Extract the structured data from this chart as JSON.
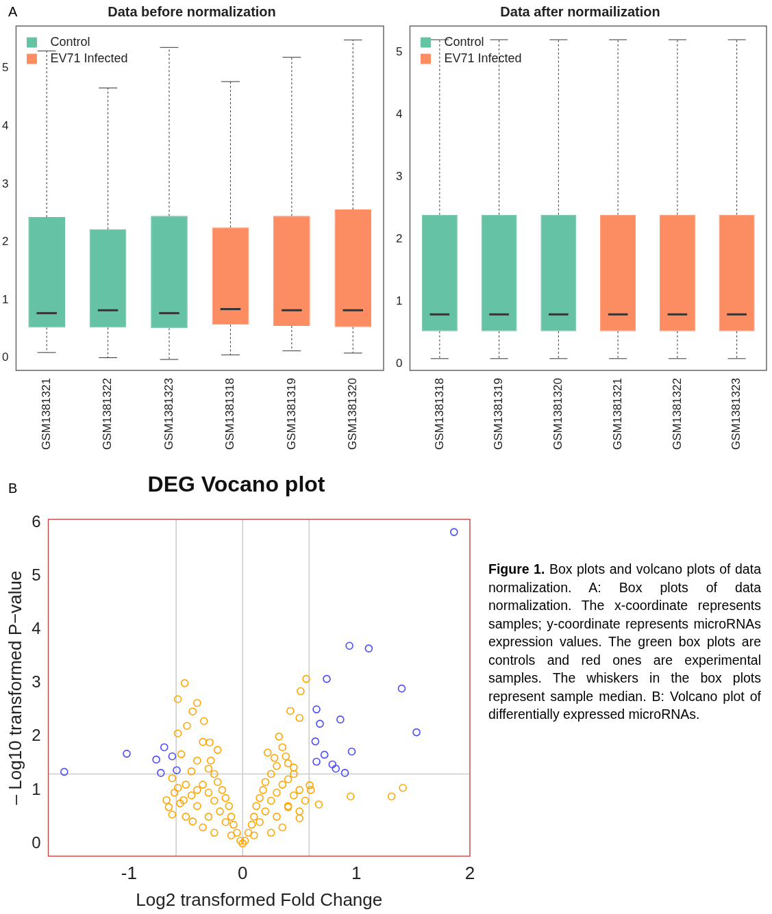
{
  "chart_data": [
    {
      "type": "box",
      "title": "Data before normalization",
      "categories": [
        "GSM1381321",
        "GSM1381322",
        "GSM1381323",
        "GSM1381318",
        "GSM1381319",
        "GSM1381320"
      ],
      "series": [
        {
          "name": "Control",
          "color": "#66c2a5",
          "boxes": [
            {
              "low": 0.09,
              "q1": 0.52,
              "median": 0.77,
              "q3": 2.43,
              "high": 5.3
            },
            {
              "low": 0.0,
              "q1": 0.52,
              "median": 0.82,
              "q3": 2.22,
              "high": 4.66
            },
            {
              "low": -0.03,
              "q1": 0.51,
              "median": 0.77,
              "q3": 2.45,
              "high": 5.36
            },
            null,
            null,
            null
          ]
        },
        {
          "name": "EV71 Infected",
          "color": "#fc8d62",
          "boxes": [
            null,
            null,
            null,
            {
              "low": 0.05,
              "q1": 0.57,
              "median": 0.84,
              "q3": 2.25,
              "high": 4.77
            },
            {
              "low": 0.12,
              "q1": 0.55,
              "median": 0.82,
              "q3": 2.45,
              "high": 5.19
            },
            {
              "low": 0.08,
              "q1": 0.53,
              "median": 0.82,
              "q3": 2.56,
              "high": 5.49
            }
          ]
        }
      ],
      "ylim": [
        -0.22,
        5.73
      ],
      "yticks": [
        0,
        1,
        2,
        3,
        4,
        5
      ],
      "legend": "top left",
      "annotations": [
        "A"
      ]
    },
    {
      "type": "box",
      "title": "Data after normailization",
      "categories": [
        "GSM1381318",
        "GSM1381319",
        "GSM1381320",
        "GSM1381321",
        "GSM1381322",
        "GSM1381323"
      ],
      "series": [
        {
          "name": "Control",
          "color": "#66c2a5",
          "boxes": [
            {
              "low": 0.08,
              "q1": 0.52,
              "median": 0.79,
              "q3": 2.39,
              "high": 5.2
            },
            {
              "low": 0.08,
              "q1": 0.52,
              "median": 0.79,
              "q3": 2.39,
              "high": 5.2
            },
            {
              "low": 0.08,
              "q1": 0.52,
              "median": 0.79,
              "q3": 2.39,
              "high": 5.2
            },
            null,
            null,
            null
          ]
        },
        {
          "name": "EV71 Infected",
          "color": "#fc8d62",
          "boxes": [
            null,
            null,
            null,
            {
              "low": 0.08,
              "q1": 0.52,
              "median": 0.79,
              "q3": 2.39,
              "high": 5.2
            },
            {
              "low": 0.08,
              "q1": 0.52,
              "median": 0.79,
              "q3": 2.39,
              "high": 5.2
            },
            {
              "low": 0.08,
              "q1": 0.52,
              "median": 0.79,
              "q3": 2.39,
              "high": 5.2
            }
          ]
        }
      ],
      "ylim": [
        -0.11,
        5.42
      ],
      "yticks": [
        0,
        1,
        2,
        3,
        4,
        5
      ],
      "legend": "top left"
    },
    {
      "type": "scatter",
      "title": "DEG Vocano plot",
      "xlabel": "Log2 transformed Fold Change",
      "ylabel": "– Log10 transformed P−value",
      "xlim": [
        -1.71,
        2.0
      ],
      "xticks": [
        -1,
        0,
        1,
        2
      ],
      "ylim": [
        -0.24,
        6.07
      ],
      "yticks": [
        0,
        1,
        2,
        3,
        4,
        5,
        6
      ],
      "marker": "circle",
      "ref_lines": [
        {
          "axis": "x",
          "value": -0.585,
          "color": "#cccccc"
        },
        {
          "axis": "x",
          "value": 0,
          "color": "#cccccc"
        },
        {
          "axis": "x",
          "value": 0.585,
          "color": "#cccccc"
        },
        {
          "axis": "y",
          "value": 1.3,
          "color": "#cccccc"
        }
      ],
      "series": [
        {
          "color": "#ffa500",
          "x": [
            -0.51,
            -0.57,
            -0.4,
            -0.44,
            -0.34,
            -0.57,
            -0.49,
            -0.54,
            -0.29,
            -0.62,
            -0.57,
            -0.67,
            -0.65,
            -0.62,
            -0.52,
            -0.44,
            0.56,
            0.51,
            0.42,
            0.5,
            0.32,
            0.38,
            0.45,
            0.59,
            0.67,
            0.95,
            1.31,
            1.41,
            0.5,
            0.4,
            0,
            0.02,
            -0.02,
            0.05,
            -0.05,
            0.08,
            -0.08,
            0.1,
            -0.1,
            0.12,
            -0.12,
            0.15,
            -0.15,
            0.18,
            -0.18,
            0.2,
            -0.22,
            0.25,
            -0.25,
            0.3,
            -0.3,
            0.28,
            -0.28,
            0.15,
            -0.15,
            0.2,
            -0.2,
            0.25,
            -0.25,
            0.3,
            -0.3,
            0.35,
            -0.35,
            0.4,
            -0.4,
            0.3,
            -0.3,
            0.4,
            -0.4,
            0.45,
            -0.45,
            0.5,
            -0.5,
            0.35,
            -0.35,
            0.25,
            -0.25,
            0.1,
            -0.1,
            0.5,
            -0.5,
            0.55,
            -0.55,
            0.45,
            -0.45,
            0.22,
            -0.22,
            0.35,
            -0.35,
            0.4,
            -0.4,
            0.6,
            -0.6
          ],
          "values": [
            3.0,
            2.7,
            2.63,
            2.47,
            2.29,
            2.06,
            2.2,
            1.67,
            1.89,
            1.22,
            1.04,
            0.81,
            0.68,
            0.54,
            0.81,
            0.41,
            3.08,
            2.85,
            2.48,
            2.35,
            2.0,
            1.63,
            1.42,
            1.09,
            0.73,
            0.88,
            0.88,
            1.04,
            0.47,
            0.68,
            0,
            0.05,
            0.05,
            0.2,
            0.2,
            0.35,
            0.35,
            0.5,
            0.5,
            0.7,
            0.7,
            0.85,
            0.85,
            1.0,
            1.0,
            1.15,
            1.15,
            1.3,
            1.3,
            1.45,
            1.4,
            1.6,
            1.55,
            0.4,
            0.4,
            0.6,
            0.6,
            0.8,
            0.8,
            0.95,
            0.95,
            1.1,
            1.1,
            1.2,
            1.0,
            0.5,
            0.5,
            0.7,
            0.7,
            0.9,
            0.9,
            1.0,
            1.1,
            0.3,
            0.3,
            0.2,
            0.2,
            0.15,
            0.15,
            0.6,
            0.5,
            0.8,
            0.75,
            1.3,
            1.35,
            1.7,
            1.75,
            1.8,
            1.9,
            1.5,
            1.55,
            1.0,
            0.95
          ]
        },
        {
          "color": "#4a4aff",
          "x": [
            -1.57,
            -1.02,
            -0.76,
            -0.69,
            -0.62,
            -0.72,
            -0.58,
            1.86,
            0.94,
            1.11,
            0.74,
            1.4,
            0.65,
            0.68,
            0.86,
            1.53,
            0.64,
            0.72,
            0.96,
            0.65,
            0.79,
            0.82,
            0.9
          ],
          "values": [
            1.34,
            1.68,
            1.57,
            1.8,
            1.63,
            1.32,
            1.37,
            5.83,
            3.7,
            3.65,
            3.08,
            2.9,
            2.51,
            2.24,
            2.32,
            2.08,
            1.91,
            1.66,
            1.72,
            1.53,
            1.48,
            1.4,
            1.32
          ]
        }
      ],
      "annotations": [
        "B",
        "Figure 1. Box plots and volcano plots of data normalization. A: Box plots of data normalization. The x-coordinate represents samples; y-coordinate represents microRNAs expression values. The green box plots are controls and red ones are experimental samples. The whiskers in the box plots represent sample median. B: Volcano plot of differentially expressed microRNAs."
      ]
    }
  ]
}
